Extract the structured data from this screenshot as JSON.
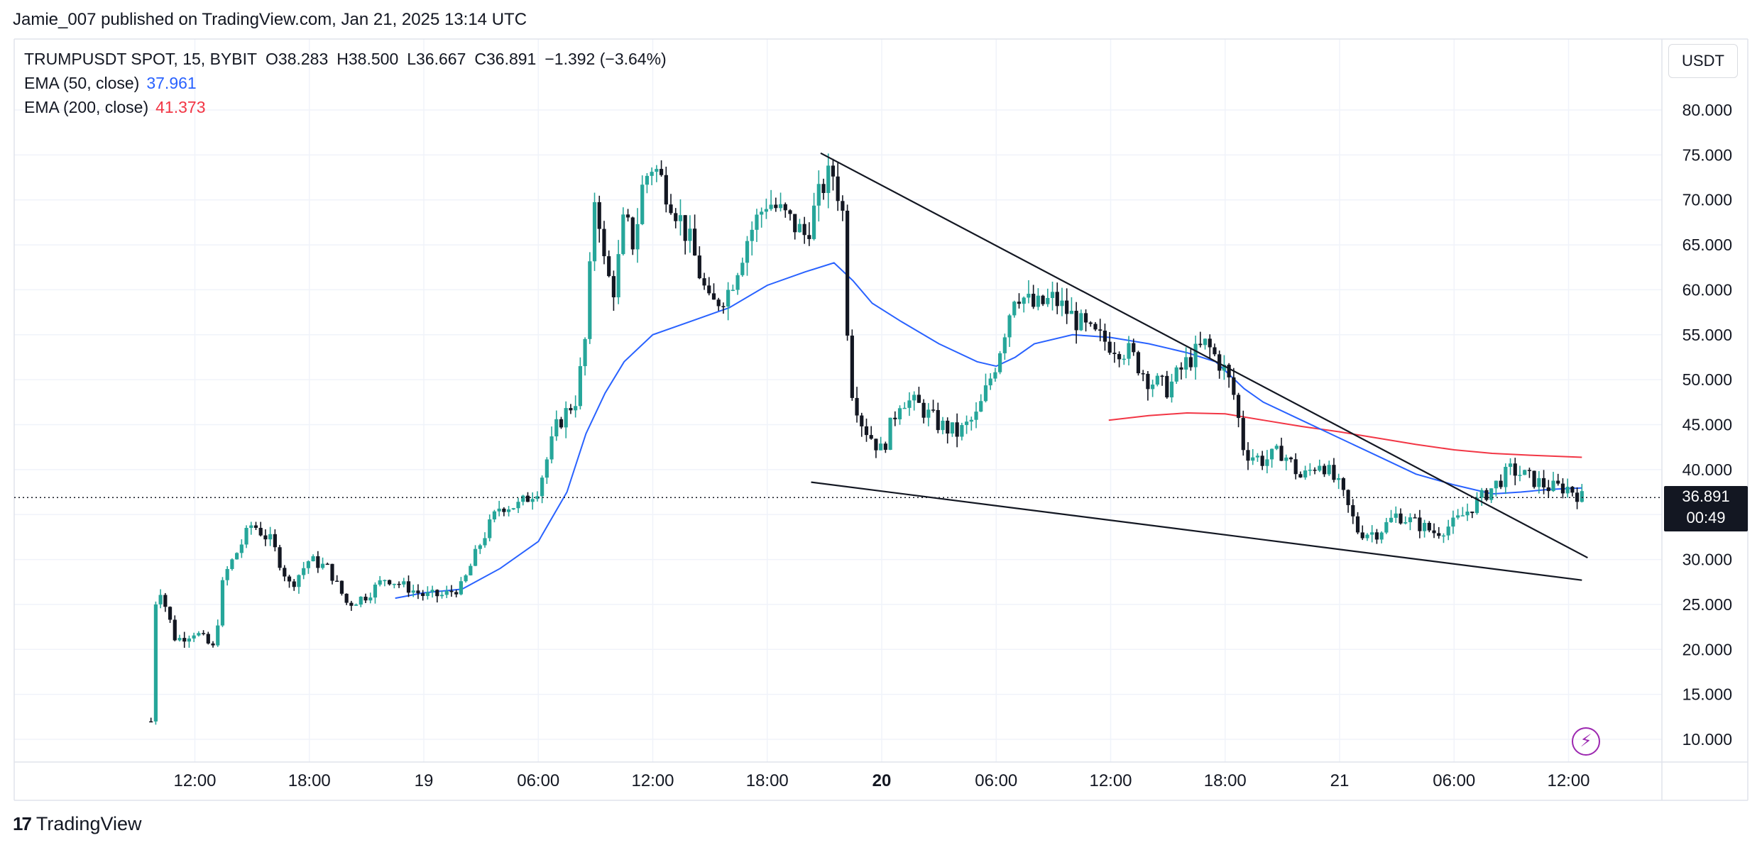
{
  "header": {
    "published_line": "Jamie_007 published on TradingView.com, Jan 21, 2025 13:14 UTC"
  },
  "legend": {
    "symbol": "TRUMPUSDT SPOT, 15, BYBIT",
    "open": "O38.283",
    "high": "H38.500",
    "low": "L36.667",
    "close": "C36.891",
    "change": "−1.392 (−3.64%)",
    "ema50_label": "EMA (50, close)",
    "ema50_value": "37.961",
    "ema200_label": "EMA (200, close)",
    "ema200_value": "41.373"
  },
  "currency": "USDT",
  "price_tag": {
    "price": "36.891",
    "countdown": "00:49"
  },
  "brand": {
    "name": "TradingView",
    "logo_icon": "tradingview-logo-icon"
  },
  "icons": {
    "bolt": "lightning-bolt-icon"
  },
  "colors": {
    "up": "#26a69a",
    "down": "#131722",
    "ema50": "#2962ff",
    "ema200": "#f23645",
    "price_tag_bg": "#131722",
    "bolt": "#9c27b0"
  },
  "chart_data": {
    "type": "candlestick",
    "ylim": [
      8,
      83
    ],
    "y_ticks": [
      "80.000",
      "75.000",
      "70.000",
      "65.000",
      "60.000",
      "55.000",
      "50.000",
      "45.000",
      "40.000",
      "35.000",
      "30.000",
      "25.000",
      "20.000",
      "15.000",
      "10.000"
    ],
    "y_tick_values": [
      80,
      75,
      70,
      65,
      60,
      55,
      50,
      45,
      40,
      35,
      30,
      25,
      20,
      15,
      10
    ],
    "x_time_range_hours": [
      -14.7,
      38.5
    ],
    "x_ticks": [
      {
        "label": "12:00",
        "t": -12
      },
      {
        "label": "18:00",
        "t": -6
      },
      {
        "label": "19",
        "t": 0,
        "bold": false
      },
      {
        "label": "06:00",
        "t": 6
      },
      {
        "label": "12:00",
        "t": 12
      },
      {
        "label": "18:00",
        "t": 18
      },
      {
        "label": "20",
        "t": 24,
        "bold": true
      },
      {
        "label": "06:00",
        "t": 30
      },
      {
        "label": "12:00",
        "t": 36
      },
      {
        "label": "18:00",
        "t": 42
      },
      {
        "label": "21",
        "t": 48
      },
      {
        "label": "06:00",
        "t": 54
      },
      {
        "label": "12:00",
        "t": 60
      }
    ],
    "last_price": 36.891,
    "price_path": [
      [
        -14.3,
        12
      ],
      [
        -14.0,
        28
      ],
      [
        -13.0,
        21
      ],
      [
        -12.0,
        22
      ],
      [
        -11.0,
        20
      ],
      [
        -10.5,
        28
      ],
      [
        -9.0,
        34
      ],
      [
        -8.0,
        32
      ],
      [
        -7.0,
        27
      ],
      [
        -6.0,
        30
      ],
      [
        -5.0,
        29
      ],
      [
        -4.0,
        25
      ],
      [
        -3.0,
        26
      ],
      [
        -2.0,
        28
      ],
      [
        -1.0,
        27
      ],
      [
        0.0,
        26
      ],
      [
        1.0,
        26
      ],
      [
        2.0,
        27
      ],
      [
        3.0,
        32
      ],
      [
        4.0,
        36
      ],
      [
        5.0,
        36
      ],
      [
        6.0,
        38
      ],
      [
        7.0,
        45
      ],
      [
        8.0,
        48
      ],
      [
        8.5,
        55
      ],
      [
        9.0,
        72
      ],
      [
        9.5,
        62
      ],
      [
        10.0,
        60
      ],
      [
        10.5,
        68
      ],
      [
        11.0,
        65
      ],
      [
        11.5,
        72
      ],
      [
        12.0,
        74
      ],
      [
        13.0,
        70
      ],
      [
        14.0,
        65
      ],
      [
        15.0,
        58
      ],
      [
        16.0,
        60
      ],
      [
        17.0,
        66
      ],
      [
        18.0,
        70
      ],
      [
        19.0,
        68
      ],
      [
        20.0,
        66
      ],
      [
        21.0,
        72
      ],
      [
        21.5,
        73
      ],
      [
        22.0,
        68
      ],
      [
        22.3,
        50
      ],
      [
        23.0,
        45
      ],
      [
        24.0,
        42
      ],
      [
        25.0,
        48
      ],
      [
        26.0,
        47
      ],
      [
        27.0,
        45
      ],
      [
        28.0,
        44
      ],
      [
        29.0,
        46
      ],
      [
        30.0,
        52
      ],
      [
        31.0,
        60
      ],
      [
        32.0,
        58
      ],
      [
        33.0,
        59
      ],
      [
        34.0,
        57
      ],
      [
        35.0,
        55
      ],
      [
        36.0,
        54
      ],
      [
        37.0,
        53
      ],
      [
        38.0,
        50
      ],
      [
        39.0,
        49
      ],
      [
        40.0,
        52
      ],
      [
        41.0,
        54
      ],
      [
        42.0,
        51
      ],
      [
        42.5,
        48
      ],
      [
        43.0,
        42
      ],
      [
        44.0,
        41
      ],
      [
        45.0,
        42
      ],
      [
        46.0,
        39
      ],
      [
        47.0,
        41
      ],
      [
        48.0,
        38
      ],
      [
        49.0,
        33
      ],
      [
        50.0,
        33
      ],
      [
        51.0,
        35
      ],
      [
        52.0,
        34
      ],
      [
        53.0,
        33
      ],
      [
        54.0,
        34
      ],
      [
        55.0,
        36
      ],
      [
        56.0,
        38
      ],
      [
        57.0,
        40
      ],
      [
        58.0,
        39
      ],
      [
        59.0,
        38
      ],
      [
        60.0,
        38
      ],
      [
        60.7,
        36.89
      ]
    ],
    "ema50_path": [
      [
        -1.5,
        25.7
      ],
      [
        0.0,
        26.3
      ],
      [
        2.0,
        26.7
      ],
      [
        4.0,
        29.0
      ],
      [
        6.0,
        32.0
      ],
      [
        7.5,
        37.5
      ],
      [
        8.5,
        44.0
      ],
      [
        9.5,
        48.5
      ],
      [
        10.5,
        52.0
      ],
      [
        12.0,
        55.0
      ],
      [
        14.0,
        56.5
      ],
      [
        16.0,
        58.0
      ],
      [
        18.0,
        60.5
      ],
      [
        20.0,
        62.0
      ],
      [
        21.5,
        63.0
      ],
      [
        22.5,
        61.0
      ],
      [
        23.5,
        58.5
      ],
      [
        25.0,
        56.5
      ],
      [
        27.0,
        54.0
      ],
      [
        29.0,
        52.0
      ],
      [
        30.0,
        51.5
      ],
      [
        31.0,
        52.5
      ],
      [
        32.0,
        54.0
      ],
      [
        34.0,
        55.0
      ],
      [
        36.0,
        54.7
      ],
      [
        38.0,
        54.0
      ],
      [
        40.0,
        53.0
      ],
      [
        41.5,
        52.0
      ],
      [
        43.0,
        49.0
      ],
      [
        44.0,
        47.5
      ],
      [
        46.0,
        45.5
      ],
      [
        48.0,
        43.5
      ],
      [
        50.0,
        41.5
      ],
      [
        52.0,
        39.5
      ],
      [
        54.0,
        38.3
      ],
      [
        56.0,
        37.3
      ],
      [
        57.5,
        37.5
      ],
      [
        59.0,
        37.8
      ],
      [
        60.7,
        37.96
      ]
    ],
    "ema200_path": [
      [
        35.9,
        45.5
      ],
      [
        38.0,
        46.0
      ],
      [
        40.0,
        46.3
      ],
      [
        42.0,
        46.2
      ],
      [
        44.0,
        45.5
      ],
      [
        46.0,
        44.8
      ],
      [
        48.0,
        44.2
      ],
      [
        50.0,
        43.5
      ],
      [
        52.0,
        42.8
      ],
      [
        54.0,
        42.2
      ],
      [
        56.0,
        41.8
      ],
      [
        58.0,
        41.6
      ],
      [
        60.7,
        41.37
      ]
    ],
    "trendlines": [
      {
        "from": [
          20.8,
          75.2
        ],
        "to": [
          61.0,
          30.2
        ]
      },
      {
        "from": [
          20.3,
          38.6
        ],
        "to": [
          60.7,
          27.7
        ]
      }
    ]
  }
}
